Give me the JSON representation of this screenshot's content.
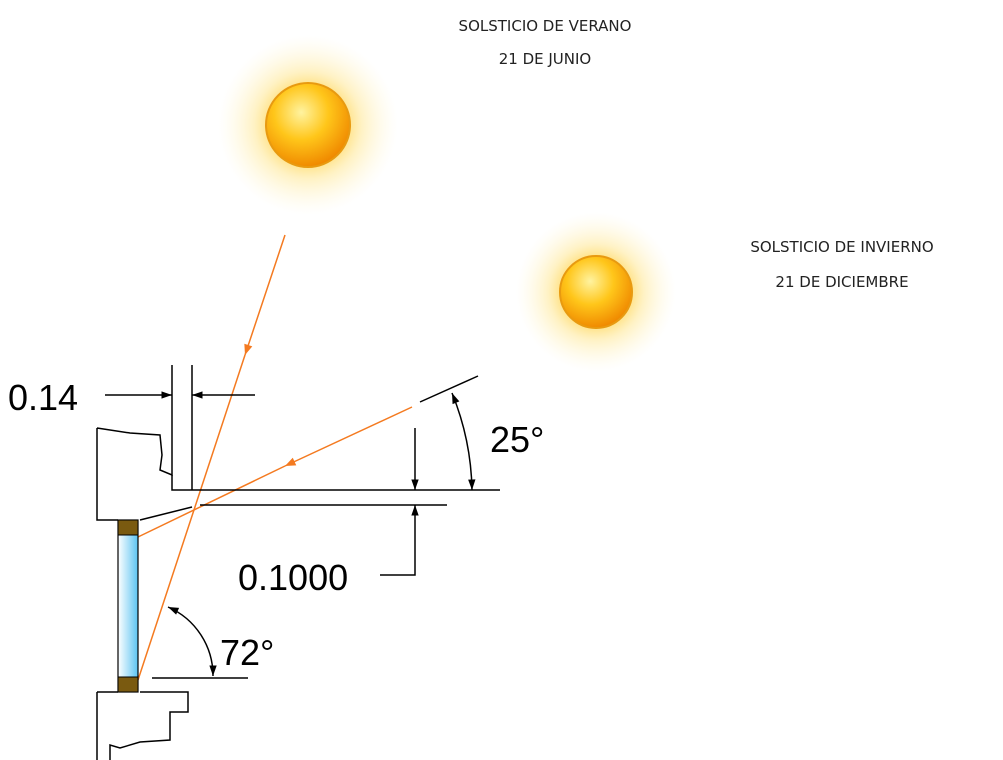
{
  "summer": {
    "title": "SOLSTICIO DE VERANO",
    "date": "21 DE JUNIO"
  },
  "winter": {
    "title": "SOLSTICIO DE INVIERNO",
    "date": "21 DE DICIEMBRE"
  },
  "dimensions": {
    "overhang": "0.14",
    "slab": "0.1000",
    "winter_angle": "25°",
    "summer_angle": "72°"
  }
}
